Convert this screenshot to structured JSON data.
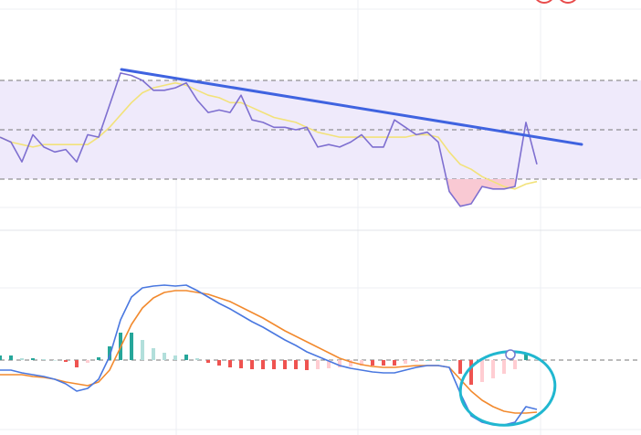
{
  "chart_data": [
    {
      "type": "line",
      "categories": [
        null,
        null,
        null,
        null,
        null,
        null,
        null,
        null,
        null,
        null,
        null,
        null,
        null,
        null,
        null,
        null,
        null,
        null,
        null,
        null,
        null,
        null,
        null,
        null,
        null,
        null,
        null,
        null,
        null,
        null,
        null,
        null,
        null,
        null,
        null,
        null,
        null,
        null,
        null,
        null,
        null,
        null,
        null,
        null,
        null,
        null,
        null,
        null,
        null,
        null
      ],
      "series": [
        {
          "name": null,
          "color": "#7e6fd0",
          "values": [
            47,
            45,
            37,
            48,
            43,
            41,
            42,
            37,
            48,
            47,
            60,
            73,
            72,
            70,
            66,
            66,
            67,
            69,
            62,
            57,
            58,
            57,
            64,
            54,
            53,
            51,
            51,
            50,
            51,
            43,
            44,
            43,
            45,
            48,
            43,
            43,
            54,
            51,
            48,
            49,
            45,
            25,
            19,
            20,
            27,
            26,
            26,
            27,
            53,
            36
          ]
        },
        {
          "name": null,
          "color": "#f2e27a",
          "values": [
            47,
            45,
            44,
            43,
            44,
            44,
            44,
            44,
            44,
            47,
            51,
            56,
            61,
            65,
            67,
            68,
            69,
            68,
            66,
            64,
            63,
            61,
            61,
            59,
            57,
            55,
            54,
            53,
            51,
            49,
            48,
            47,
            47,
            47,
            47,
            47,
            47,
            47,
            48,
            48,
            47,
            41,
            36,
            34,
            31,
            29,
            27,
            26,
            28,
            29
          ]
        }
      ],
      "ylim": [
        10,
        100
      ],
      "yticks": [
        30,
        50,
        70
      ],
      "grid": true,
      "band": [
        30,
        70
      ],
      "band_color": "#efeafb",
      "oversold_color": "#f9c9d3"
    },
    {
      "type": "line",
      "categories": [
        null,
        null,
        null,
        null,
        null,
        null,
        null,
        null,
        null,
        null,
        null,
        null,
        null,
        null,
        null,
        null,
        null,
        null,
        null,
        null,
        null,
        null,
        null,
        null,
        null,
        null,
        null,
        null,
        null,
        null,
        null,
        null,
        null,
        null,
        null,
        null,
        null,
        null,
        null,
        null,
        null,
        null,
        null,
        null,
        null,
        null,
        null,
        null,
        null,
        null
      ],
      "series": [
        {
          "name": null,
          "color": "#4a78e0",
          "values": [
            -1.1,
            -1.1,
            -1.4,
            -1.6,
            -1.8,
            -2.1,
            -2.6,
            -3.4,
            -3.1,
            -2.1,
            0.4,
            4.4,
            6.9,
            7.9,
            8.1,
            8.2,
            8.1,
            8.2,
            7.6,
            6.9,
            6.2,
            5.6,
            4.9,
            4.2,
            3.6,
            2.9,
            2.2,
            1.6,
            0.9,
            0.4,
            -0.1,
            -0.6,
            -0.9,
            -1.1,
            -1.3,
            -1.4,
            -1.4,
            -1.1,
            -0.8,
            -0.6,
            -0.6,
            -0.8,
            -3.6,
            -6.1,
            -6.8,
            -7.1,
            -7.1,
            -6.8,
            -5.1,
            -5.4
          ]
        },
        {
          "name": null,
          "color": "#f28a2e",
          "values": [
            -1.6,
            -1.6,
            -1.6,
            -1.8,
            -1.9,
            -2.1,
            -2.4,
            -2.6,
            -2.8,
            -2.4,
            -1.1,
            1.4,
            3.9,
            5.7,
            6.8,
            7.4,
            7.6,
            7.6,
            7.4,
            7.2,
            6.8,
            6.4,
            5.8,
            5.2,
            4.6,
            3.9,
            3.2,
            2.6,
            2.0,
            1.4,
            0.8,
            0.2,
            -0.2,
            -0.5,
            -0.7,
            -0.8,
            -0.8,
            -0.7,
            -0.6,
            -0.6,
            -0.6,
            -0.8,
            -2.1,
            -3.4,
            -4.4,
            -5.1,
            -5.6,
            -5.8,
            -5.8,
            -5.7
          ]
        }
      ],
      "histogram": {
        "values": [
          0.5,
          0.5,
          0.2,
          0.2,
          0.1,
          0,
          -0.2,
          -0.8,
          -0.3,
          0.3,
          1.5,
          3.0,
          3.0,
          2.2,
          1.3,
          0.8,
          0.5,
          0.6,
          0.2,
          -0.3,
          -0.6,
          -0.8,
          -0.9,
          -1.0,
          -1.0,
          -1.0,
          -1.0,
          -1.0,
          -1.1,
          -1.0,
          -0.9,
          -0.8,
          -0.7,
          -0.6,
          -0.6,
          -0.6,
          -0.6,
          -0.4,
          -0.2,
          0,
          0,
          0,
          -1.5,
          -2.7,
          -2.4,
          -2.0,
          -1.5,
          -1.0,
          0.7,
          0.3
        ],
        "colors": {
          "up_strong": "#26a69a",
          "up_weak": "#b2dfdb",
          "down_strong": "#ef5350",
          "down_weak": "#ffcdd2"
        }
      },
      "ylim": [
        -8,
        9.4
      ],
      "yticks": [
        0
      ],
      "grid": true
    }
  ]
}
